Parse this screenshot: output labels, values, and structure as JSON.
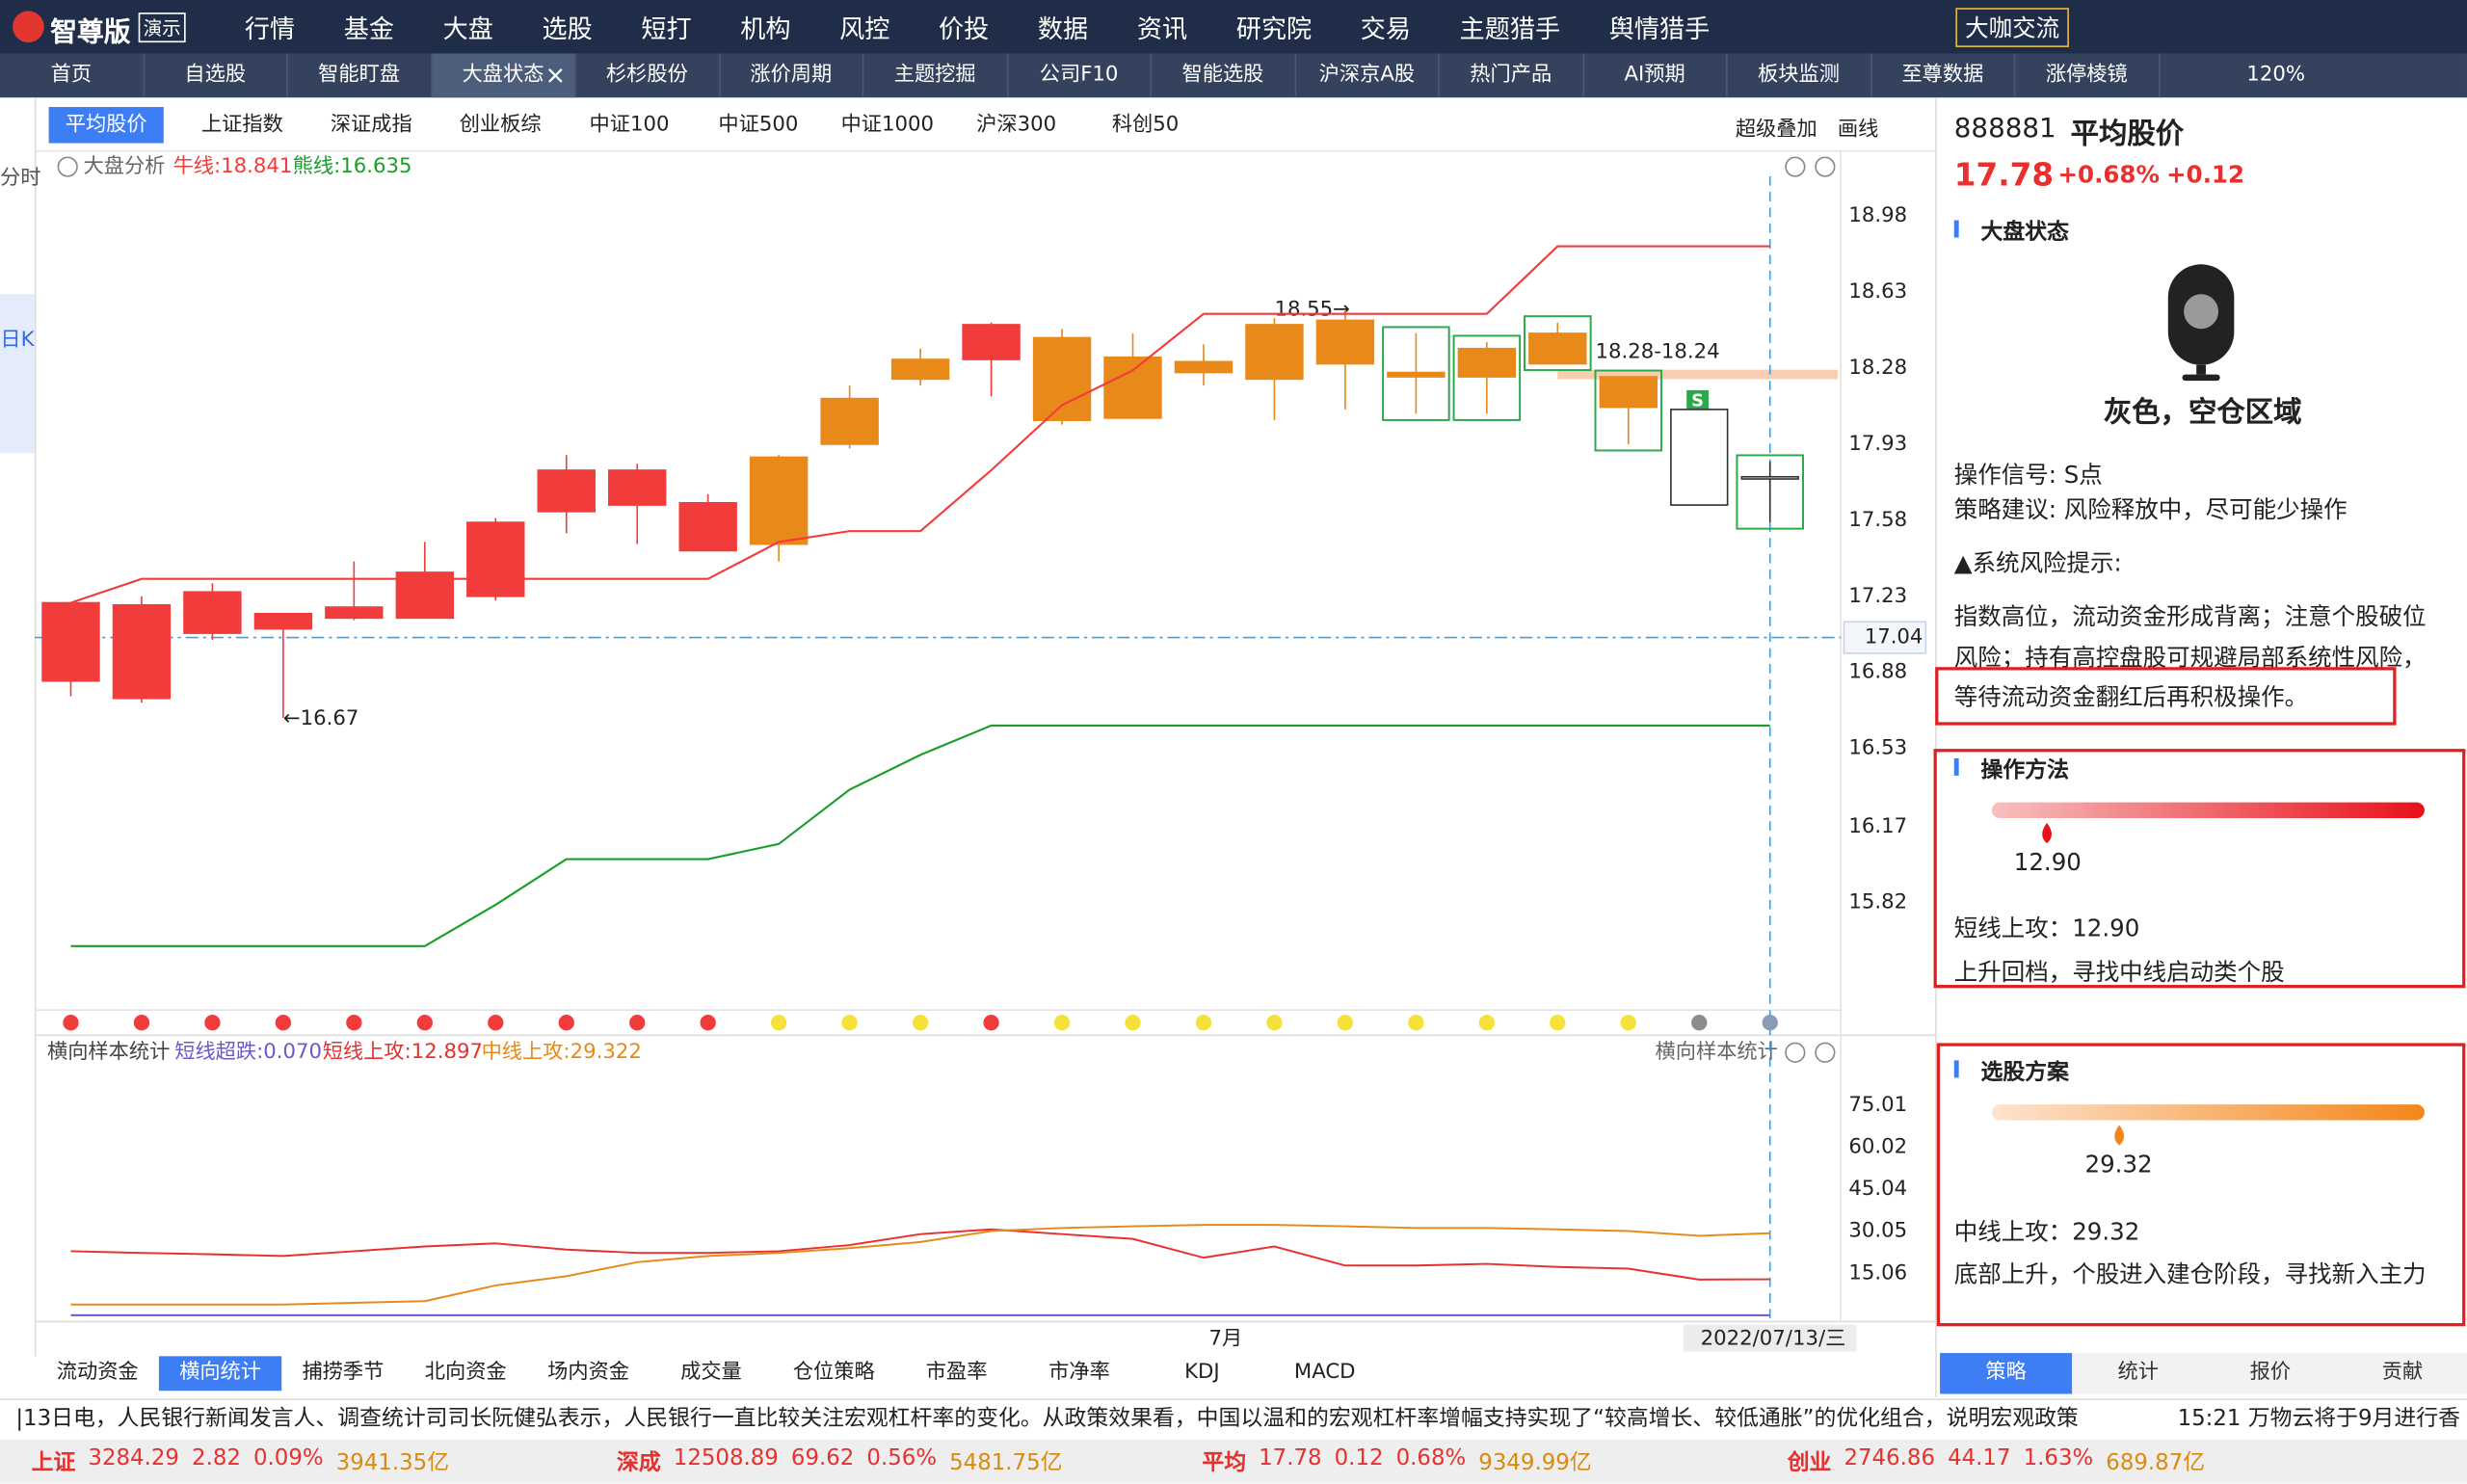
{
  "menu": {
    "logo": "智尊版",
    "badge": "演示",
    "items": [
      "行情",
      "基金",
      "大盘",
      "选股",
      "短打",
      "机构",
      "风控",
      "价投",
      "数据",
      "资讯",
      "研究院",
      "交易",
      "主题猎手",
      "舆情猎手"
    ],
    "button": "大咖交流"
  },
  "tabs": {
    "items": [
      "首页",
      "自选股",
      "智能盯盘",
      "大盘状态",
      "杉杉股份",
      "涨价周期",
      "主题挖掘",
      "公司F10",
      "智能选股",
      "沪深京A股",
      "热门产品",
      "AI预期",
      "板块监测",
      "至尊数据",
      "涨停棱镜"
    ],
    "active": "大盘状态",
    "zoom": "120%"
  },
  "index_tabs": {
    "items": [
      "平均股价",
      "上证指数",
      "深证成指",
      "创业板综",
      "中证100",
      "中证500",
      "中证1000",
      "沪深300",
      "科创50"
    ],
    "active": "平均股价",
    "tools": [
      "超级叠加",
      "画线"
    ]
  },
  "side_tabs": {
    "items": [
      "分时",
      "日K"
    ],
    "active": "日K"
  },
  "chart_data": [
    {
      "type": "candlestick",
      "title": "大盘分析",
      "categories": [
        null,
        null,
        null,
        null,
        null,
        null,
        null,
        null,
        null,
        null,
        null,
        null,
        null,
        null,
        null,
        null,
        "7月",
        null,
        null,
        null,
        null,
        null,
        null,
        null,
        "2022/07/13/三"
      ],
      "open": [
        16.84,
        16.76,
        17.06,
        17.08,
        17.13,
        17.13,
        17.23,
        17.62,
        17.65,
        17.44,
        17.47,
        17.93,
        18.23,
        18.32,
        18.42,
        18.33,
        18.31,
        18.48,
        18.5,
        18.26,
        18.37,
        18.44,
        18.24,
        18.09,
        17.77
      ],
      "high": [
        17.2,
        17.23,
        17.29,
        17.15,
        17.39,
        17.48,
        17.59,
        17.88,
        17.84,
        17.7,
        17.88,
        18.2,
        18.37,
        18.49,
        18.46,
        18.44,
        18.39,
        18.51,
        18.55,
        18.44,
        18.4,
        18.49,
        18.24,
        18.09,
        17.85
      ],
      "low": [
        16.77,
        16.74,
        17.03,
        16.67,
        17.12,
        17.13,
        17.21,
        17.52,
        17.47,
        17.44,
        17.39,
        17.91,
        18.2,
        18.15,
        18.02,
        18.05,
        18.2,
        18.04,
        18.09,
        18.07,
        18.07,
        18.3,
        17.93,
        17.65,
        17.57
      ],
      "close": [
        17.2,
        17.19,
        17.25,
        17.15,
        17.18,
        17.34,
        17.57,
        17.81,
        17.81,
        17.66,
        17.87,
        18.14,
        18.32,
        18.48,
        18.04,
        18.05,
        18.26,
        18.23,
        18.3,
        18.24,
        18.24,
        18.3,
        18.1,
        17.65,
        17.78
      ],
      "colors": [
        "#f23c3c",
        "#f23c3c",
        "#f23c3c",
        "#f23c3c",
        "#f23c3c",
        "#f23c3c",
        "#f23c3c",
        "#f23c3c",
        "#f23c3c",
        "#f23c3c",
        "#e8891a",
        "#e8891a",
        "#e8891a",
        "#f23c3c",
        "#e8891a",
        "#e8891a",
        "#e8891a",
        "#e8891a",
        "#e8891a",
        "#e8891a",
        "#e8891a",
        "#e8891a",
        "#e8891a",
        "#ffffff",
        "#ffffff"
      ],
      "boxed": [
        false,
        false,
        false,
        false,
        false,
        false,
        false,
        false,
        false,
        false,
        false,
        false,
        false,
        false,
        false,
        false,
        false,
        false,
        false,
        true,
        true,
        true,
        true,
        false,
        true
      ],
      "signals": [
        "#f23c3c",
        "#f23c3c",
        "#f23c3c",
        "#f23c3c",
        "#f23c3c",
        "#f23c3c",
        "#f23c3c",
        "#f23c3c",
        "#f23c3c",
        "#f23c3c",
        "#f5e13a",
        "#f5e13a",
        "#f5e13a",
        "#f23c3c",
        "#f5e13a",
        "#f5e13a",
        "#f5e13a",
        "#f5e13a",
        "#f5e13a",
        "#f5e13a",
        "#f5e13a",
        "#f5e13a",
        "#f5e13a",
        "#8c8c8c",
        "#8a9bb5"
      ],
      "series": [
        {
          "name": "牛线:18.841",
          "color": "#f23c3c",
          "values": [
            17.2,
            17.31,
            17.31,
            17.31,
            17.31,
            17.31,
            17.31,
            17.31,
            17.31,
            17.31,
            17.48,
            17.53,
            17.53,
            17.81,
            18.11,
            18.27,
            18.53,
            18.53,
            18.53,
            18.53,
            18.53,
            18.841,
            18.841,
            18.841,
            18.841
          ]
        },
        {
          "name": "熊线:16.635",
          "color": "#1a9e2a",
          "values": [
            15.62,
            15.62,
            15.62,
            15.62,
            15.62,
            15.62,
            15.81,
            16.02,
            16.02,
            16.02,
            16.09,
            16.34,
            16.5,
            16.635,
            16.635,
            16.635,
            16.635,
            16.635,
            16.635,
            16.635,
            16.635,
            16.635,
            16.635,
            16.635,
            16.635
          ]
        }
      ],
      "crosshair": 17.04,
      "annotations": [
        "18.55→",
        "←16.67",
        "18.28-18.24",
        "S"
      ],
      "ylim": [
        15.34,
        19.12
      ],
      "yticks": [
        18.98,
        18.63,
        18.28,
        17.93,
        17.58,
        17.23,
        16.88,
        16.53,
        16.17,
        15.82
      ]
    },
    {
      "type": "line",
      "title": "横向样本统计",
      "series": [
        {
          "name": "短线超跌:0.070",
          "color": "#6a5acd",
          "values": [
            0.07,
            0.07,
            0.07,
            0.07,
            0.07,
            0.07,
            0.07,
            0.07,
            0.07,
            0.07,
            0.07,
            0.07,
            0.07,
            0.07,
            0.07,
            0.07,
            0.07,
            0.07,
            0.07,
            0.07,
            0.07,
            0.07,
            0.07,
            0.07,
            0.07
          ]
        },
        {
          "name": "短线上攻:12.897",
          "color": "#e8302f",
          "values": [
            22.9,
            22.3,
            21.8,
            21.2,
            22.9,
            24.6,
            25.7,
            23.5,
            22.3,
            22.3,
            22.9,
            25.1,
            29.0,
            30.7,
            29.0,
            27.3,
            20.6,
            24.6,
            17.8,
            17.8,
            18.4,
            17.3,
            16.7,
            12.8,
            12.897
          ]
        },
        {
          "name": "中线上攻:29.322",
          "color": "#e8891a",
          "values": [
            3.9,
            3.9,
            3.9,
            3.9,
            4.5,
            5.1,
            10.7,
            14.0,
            19.0,
            21.2,
            22.3,
            24.0,
            26.2,
            30.1,
            31.2,
            31.8,
            32.3,
            32.3,
            31.8,
            31.2,
            31.2,
            30.7,
            30.1,
            28.4,
            29.322
          ]
        }
      ],
      "ylim": [
        -0.5,
        82
      ],
      "yticks": [
        75.01,
        60.02,
        45.04,
        30.05,
        15.06
      ]
    }
  ],
  "indicator_tabs": {
    "items": [
      "流动资金",
      "横向统计",
      "捕捞季节",
      "北向资金",
      "场内资金",
      "成交量",
      "仓位策略",
      "市盈率",
      "市净率",
      "KDJ",
      "MACD"
    ],
    "active": "横向统计"
  },
  "panel": {
    "code": "888881",
    "name": "平均股价",
    "price": 17.78,
    "change_pct": "+0.68%",
    "change": "+0.12",
    "status_title": "大盘状态",
    "status": "灰色，空仓区域",
    "signal": "操作信号: S点",
    "advice": "策略建议: 风险释放中，尽可能少操作",
    "risk_title": "▲系统风险提示:",
    "risk_lines": [
      "指数高位，流动资金形成背离；注意个股破位",
      "风险；持有高控盘股可规避局部系统性风险，",
      "等待流动资金翻红后再积极操作。"
    ],
    "method": {
      "title": "操作方法",
      "value": 12.9,
      "value_label": "12.90",
      "scale": [
        0,
        100
      ],
      "line1": "短线上攻：12.90",
      "line2": "上升回档，寻找中线启动类个股"
    },
    "plan": {
      "title": "选股方案",
      "value": 29.32,
      "value_label": "29.32",
      "scale": [
        0,
        100
      ],
      "line1": "中线上攻：29.32",
      "line2": "底部上升，个股进入建仓阶段，寻找新入主力"
    },
    "tabs": [
      "策略",
      "统计",
      "报价",
      "贡献"
    ],
    "active_tab": "策略"
  },
  "ticker": {
    "news": "|13日电，人民银行新闻发言人、调查统计司司长阮健弘表示，人民银行一直比较关注宏观杠杆率的变化。从政策效果看，中国以温和的宏观杠杆率增幅支持实现了“较高增长、较低通胀”的优化组合，说明宏观政策",
    "flash": "15:21 万物云将于9月进行香"
  },
  "status": [
    {
      "name": "上证",
      "value": "3284.29",
      "change": "2.82",
      "pct": "0.09%",
      "amount": "3941.35亿"
    },
    {
      "name": "深成",
      "value": "12508.89",
      "change": "69.62",
      "pct": "0.56%",
      "amount": "5481.75亿"
    },
    {
      "name": "平均",
      "value": "17.78",
      "change": "0.12",
      "pct": "0.68%",
      "amount": "9349.99亿"
    },
    {
      "name": "创业",
      "value": "2746.86",
      "change": "44.17",
      "pct": "1.63%",
      "amount": "689.87亿"
    }
  ]
}
